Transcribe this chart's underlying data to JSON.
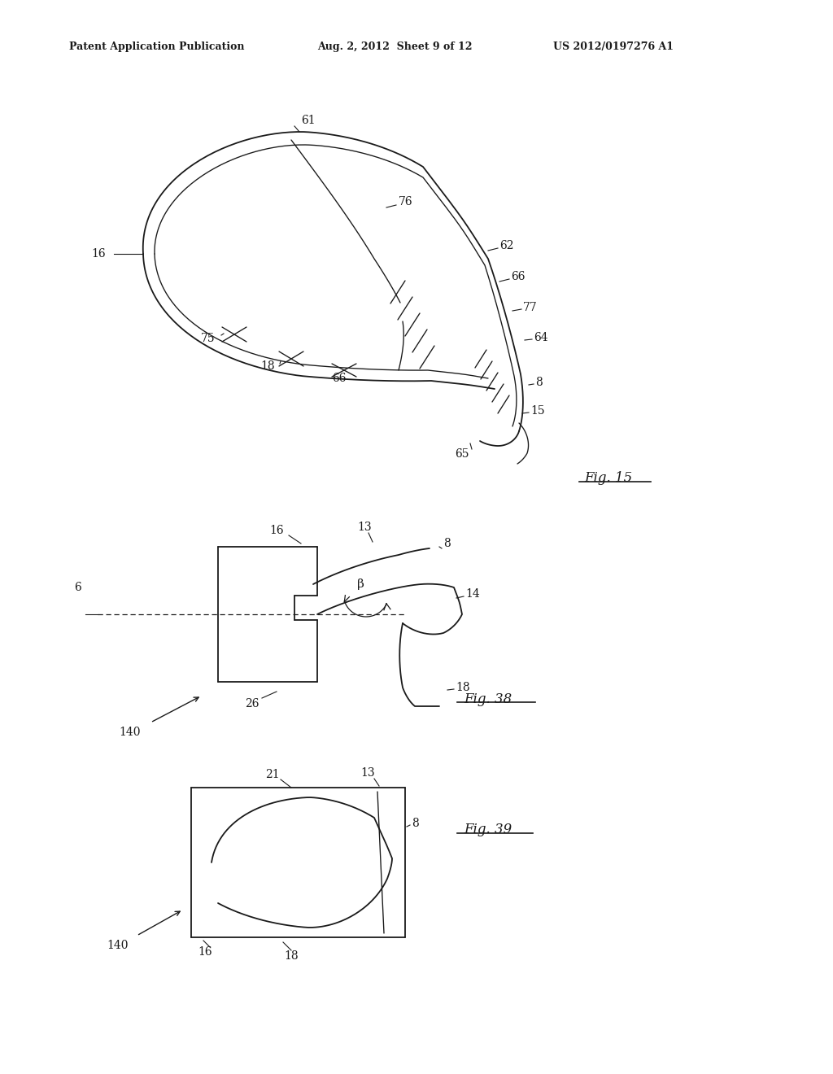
{
  "bg_color": "#ffffff",
  "header_left": "Patent Application Publication",
  "header_mid": "Aug. 2, 2012  Sheet 9 of 12",
  "header_right": "US 2012/0197276 A1",
  "fig15_label": "Fig. 15",
  "fig38_label": "Fig. 38",
  "fig39_label": "Fig. 39",
  "line_color": "#1a1a1a",
  "lw": 1.3
}
